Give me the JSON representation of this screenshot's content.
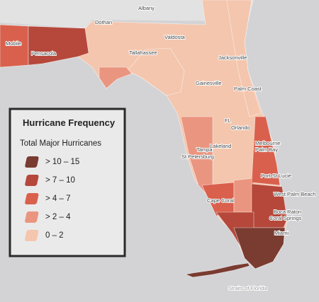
{
  "legend": {
    "title": "Hurricane Frequency",
    "subtitle": "Total Major Hurricanes",
    "items": [
      {
        "label": "> 10 – 15",
        "color": "#7a3b31"
      },
      {
        "label": "> 7 – 10",
        "color": "#b5483b"
      },
      {
        "label": "> 4 – 7",
        "color": "#d9604d"
      },
      {
        "label": "> 2 – 4",
        "color": "#ea9580"
      },
      {
        "label": "0 – 2",
        "color": "#f4c6ae"
      }
    ]
  },
  "places": [
    "Albany",
    "Dothan",
    "Valdosta",
    "Mobile",
    "Pensacola",
    "Tallahassee",
    "Jacksonville",
    "Gainesville",
    "Palm Coast",
    "FL",
    "Orlando",
    "Lakeland",
    "Melbourne",
    "Palm Bay",
    "Tampa",
    "St Petersburg",
    "Port St Lucie",
    "West Palm Beach",
    "Cape Coral",
    "Boca Raton",
    "Coral Springs",
    "Miami",
    "Straits of Florida"
  ]
}
